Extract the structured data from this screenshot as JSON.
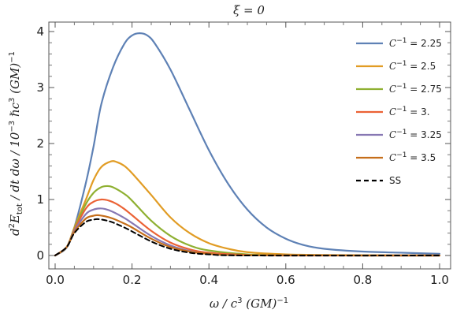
{
  "chart_data": {
    "type": "line",
    "title": "ξ = 0",
    "xlabel": {
      "main": "ω / c",
      "sup1": "3",
      "rest": " (GM)",
      "sup2": "−1"
    },
    "ylabel": {
      "p1": "d",
      "s1": "2",
      "p2": "E",
      "sub": "tot",
      "p3": " / dt dω  /  10",
      "s2": "−3",
      "p4": " ℏc",
      "s3": "3",
      "p5": " (GM)",
      "s4": "−1"
    },
    "xlim": [
      0,
      1
    ],
    "ylim": [
      -0.15,
      4.3
    ],
    "x_ticks": [
      0.0,
      0.2,
      0.4,
      0.6,
      0.8,
      1.0
    ],
    "x_tick_labels": [
      "0.0",
      "0.2",
      "0.4",
      "0.6",
      "0.8",
      "1.0"
    ],
    "y_ticks": [
      0,
      1,
      2,
      3,
      4
    ],
    "y_tick_labels": [
      "0",
      "1",
      "2",
      "3",
      "4"
    ],
    "grid": false,
    "legend_position": "top-right",
    "series": [
      {
        "name": "C⁻¹ = 2.25",
        "legend": {
          "var": "C",
          "sup": "−1",
          "val": " = 2.25"
        },
        "color": "#5e81b5",
        "points": [
          [
            0,
            0
          ],
          [
            0.03,
            0.14
          ],
          [
            0.05,
            0.5
          ],
          [
            0.08,
            1.3
          ],
          [
            0.1,
            1.95
          ],
          [
            0.12,
            2.7
          ],
          [
            0.15,
            3.35
          ],
          [
            0.18,
            3.78
          ],
          [
            0.2,
            3.93
          ],
          [
            0.22,
            3.97
          ],
          [
            0.24,
            3.93
          ],
          [
            0.26,
            3.78
          ],
          [
            0.3,
            3.32
          ],
          [
            0.35,
            2.6
          ],
          [
            0.4,
            1.88
          ],
          [
            0.45,
            1.28
          ],
          [
            0.5,
            0.82
          ],
          [
            0.55,
            0.5
          ],
          [
            0.6,
            0.3
          ],
          [
            0.65,
            0.18
          ],
          [
            0.7,
            0.12
          ],
          [
            0.8,
            0.07
          ],
          [
            0.9,
            0.05
          ],
          [
            1.0,
            0.03
          ]
        ]
      },
      {
        "name": "C⁻¹ = 2.5",
        "legend": {
          "var": "C",
          "sup": "−1",
          "val": " = 2.5"
        },
        "color": "#e19c24",
        "points": [
          [
            0,
            0
          ],
          [
            0.03,
            0.15
          ],
          [
            0.05,
            0.5
          ],
          [
            0.08,
            1.0
          ],
          [
            0.1,
            1.35
          ],
          [
            0.12,
            1.58
          ],
          [
            0.145,
            1.68
          ],
          [
            0.16,
            1.67
          ],
          [
            0.18,
            1.6
          ],
          [
            0.2,
            1.47
          ],
          [
            0.25,
            1.08
          ],
          [
            0.3,
            0.68
          ],
          [
            0.35,
            0.4
          ],
          [
            0.4,
            0.22
          ],
          [
            0.45,
            0.12
          ],
          [
            0.5,
            0.06
          ],
          [
            0.6,
            0.02
          ],
          [
            0.7,
            0.01
          ],
          [
            0.8,
            0.005
          ],
          [
            1.0,
            0.0
          ]
        ]
      },
      {
        "name": "C⁻¹ = 2.75",
        "legend": {
          "var": "C",
          "sup": "−1",
          "val": " = 2.75"
        },
        "color": "#8fb032",
        "points": [
          [
            0,
            0
          ],
          [
            0.03,
            0.15
          ],
          [
            0.05,
            0.48
          ],
          [
            0.08,
            0.92
          ],
          [
            0.1,
            1.12
          ],
          [
            0.12,
            1.22
          ],
          [
            0.135,
            1.24
          ],
          [
            0.15,
            1.22
          ],
          [
            0.18,
            1.1
          ],
          [
            0.2,
            0.98
          ],
          [
            0.25,
            0.62
          ],
          [
            0.3,
            0.35
          ],
          [
            0.35,
            0.18
          ],
          [
            0.4,
            0.09
          ],
          [
            0.5,
            0.02
          ],
          [
            0.6,
            0.005
          ],
          [
            0.8,
            0.0
          ],
          [
            1.0,
            0.0
          ]
        ]
      },
      {
        "name": "C⁻¹ = 3.",
        "legend": {
          "var": "C",
          "sup": "−1",
          "val": " = 3."
        },
        "color": "#eb6235",
        "points": [
          [
            0,
            0
          ],
          [
            0.03,
            0.15
          ],
          [
            0.05,
            0.46
          ],
          [
            0.08,
            0.84
          ],
          [
            0.1,
            0.96
          ],
          [
            0.12,
            1.0
          ],
          [
            0.14,
            0.98
          ],
          [
            0.16,
            0.92
          ],
          [
            0.18,
            0.83
          ],
          [
            0.2,
            0.72
          ],
          [
            0.25,
            0.44
          ],
          [
            0.3,
            0.23
          ],
          [
            0.35,
            0.11
          ],
          [
            0.4,
            0.05
          ],
          [
            0.5,
            0.01
          ],
          [
            0.6,
            0.0
          ],
          [
            1.0,
            0.0
          ]
        ]
      },
      {
        "name": "C⁻¹ = 3.25",
        "legend": {
          "var": "C",
          "sup": "−1",
          "val": " = 3.25"
        },
        "color": "#8778b3",
        "points": [
          [
            0,
            0
          ],
          [
            0.03,
            0.15
          ],
          [
            0.05,
            0.44
          ],
          [
            0.08,
            0.74
          ],
          [
            0.1,
            0.82
          ],
          [
            0.115,
            0.84
          ],
          [
            0.13,
            0.83
          ],
          [
            0.15,
            0.78
          ],
          [
            0.18,
            0.67
          ],
          [
            0.2,
            0.58
          ],
          [
            0.25,
            0.35
          ],
          [
            0.3,
            0.18
          ],
          [
            0.35,
            0.08
          ],
          [
            0.4,
            0.03
          ],
          [
            0.5,
            0.005
          ],
          [
            1.0,
            0.0
          ]
        ]
      },
      {
        "name": "C⁻¹ = 3.5",
        "legend": {
          "var": "C",
          "sup": "−1",
          "val": " = 3.5"
        },
        "color": "#c56e1a",
        "points": [
          [
            0,
            0
          ],
          [
            0.03,
            0.15
          ],
          [
            0.05,
            0.42
          ],
          [
            0.08,
            0.66
          ],
          [
            0.1,
            0.71
          ],
          [
            0.11,
            0.72
          ],
          [
            0.13,
            0.7
          ],
          [
            0.15,
            0.66
          ],
          [
            0.18,
            0.57
          ],
          [
            0.2,
            0.5
          ],
          [
            0.25,
            0.3
          ],
          [
            0.3,
            0.15
          ],
          [
            0.35,
            0.07
          ],
          [
            0.4,
            0.03
          ],
          [
            0.5,
            0.005
          ],
          [
            1.0,
            0.0
          ]
        ]
      },
      {
        "name": "SS",
        "legend": {
          "var": "",
          "sup": "",
          "val": "SS"
        },
        "color": "#000000",
        "dashed": true,
        "points": [
          [
            0,
            0
          ],
          [
            0.03,
            0.15
          ],
          [
            0.05,
            0.4
          ],
          [
            0.08,
            0.6
          ],
          [
            0.1,
            0.64
          ],
          [
            0.11,
            0.65
          ],
          [
            0.13,
            0.63
          ],
          [
            0.15,
            0.59
          ],
          [
            0.18,
            0.5
          ],
          [
            0.2,
            0.43
          ],
          [
            0.25,
            0.25
          ],
          [
            0.3,
            0.12
          ],
          [
            0.35,
            0.05
          ],
          [
            0.4,
            0.02
          ],
          [
            0.5,
            0.0
          ],
          [
            1.0,
            0.0
          ]
        ]
      }
    ]
  }
}
